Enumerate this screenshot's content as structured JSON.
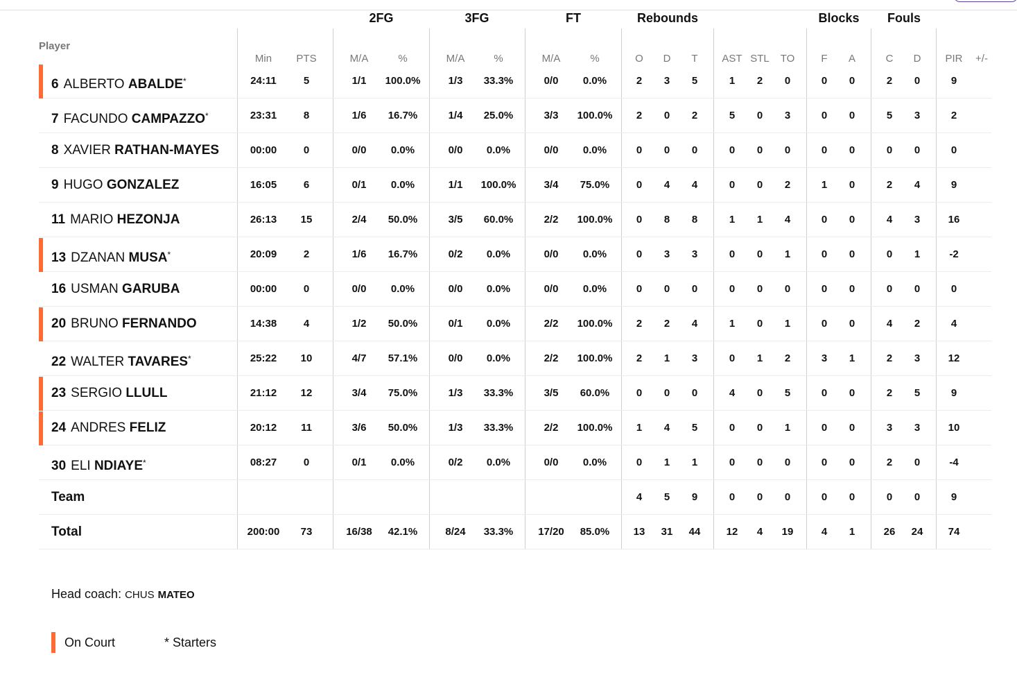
{
  "colors": {
    "on_court": "#ff6b35",
    "rule": "#cfcfcf"
  },
  "groups": [
    "2FG",
    "3FG",
    "FT",
    "Rebounds",
    "Blocks",
    "Fouls"
  ],
  "player_header": "Player",
  "columns": [
    "Min",
    "PTS",
    "M/A",
    "%",
    "M/A",
    "%",
    "M/A",
    "%",
    "O",
    "D",
    "T",
    "AST",
    "STL",
    "TO",
    "F",
    "A",
    "C",
    "D",
    "PIR",
    "+/-"
  ],
  "rows": [
    {
      "num": "6",
      "first": "ALBERTO",
      "last": "ABALDE",
      "star": "*",
      "oncourt": true,
      "stats": [
        "24:11",
        "5",
        "1/1",
        "100.0%",
        "1/3",
        "33.3%",
        "0/0",
        "0.0%",
        "2",
        "3",
        "5",
        "1",
        "2",
        "0",
        "0",
        "0",
        "2",
        "0",
        "9",
        ""
      ]
    },
    {
      "num": "7",
      "first": "FACUNDO",
      "last": "CAMPAZZO",
      "star": "*",
      "oncourt": false,
      "stats": [
        "23:31",
        "8",
        "1/6",
        "16.7%",
        "1/4",
        "25.0%",
        "3/3",
        "100.0%",
        "2",
        "0",
        "2",
        "5",
        "0",
        "3",
        "0",
        "0",
        "5",
        "3",
        "2",
        ""
      ]
    },
    {
      "num": "8",
      "first": "XAVIER",
      "last": "RATHAN-MAYES",
      "star": "",
      "oncourt": false,
      "stats": [
        "00:00",
        "0",
        "0/0",
        "0.0%",
        "0/0",
        "0.0%",
        "0/0",
        "0.0%",
        "0",
        "0",
        "0",
        "0",
        "0",
        "0",
        "0",
        "0",
        "0",
        "0",
        "0",
        ""
      ]
    },
    {
      "num": "9",
      "first": "HUGO",
      "last": "GONZALEZ",
      "star": "",
      "oncourt": false,
      "stats": [
        "16:05",
        "6",
        "0/1",
        "0.0%",
        "1/1",
        "100.0%",
        "3/4",
        "75.0%",
        "0",
        "4",
        "4",
        "0",
        "0",
        "2",
        "1",
        "0",
        "2",
        "4",
        "9",
        ""
      ]
    },
    {
      "num": "11",
      "first": "MARIO",
      "last": "HEZONJA",
      "star": "",
      "oncourt": false,
      "stats": [
        "26:13",
        "15",
        "2/4",
        "50.0%",
        "3/5",
        "60.0%",
        "2/2",
        "100.0%",
        "0",
        "8",
        "8",
        "1",
        "1",
        "4",
        "0",
        "0",
        "4",
        "3",
        "16",
        ""
      ]
    },
    {
      "num": "13",
      "first": "DZANAN",
      "last": "MUSA",
      "star": "*",
      "oncourt": true,
      "stats": [
        "20:09",
        "2",
        "1/6",
        "16.7%",
        "0/2",
        "0.0%",
        "0/0",
        "0.0%",
        "0",
        "3",
        "3",
        "0",
        "0",
        "1",
        "0",
        "0",
        "0",
        "1",
        "-2",
        ""
      ]
    },
    {
      "num": "16",
      "first": "USMAN",
      "last": "GARUBA",
      "star": "",
      "oncourt": false,
      "stats": [
        "00:00",
        "0",
        "0/0",
        "0.0%",
        "0/0",
        "0.0%",
        "0/0",
        "0.0%",
        "0",
        "0",
        "0",
        "0",
        "0",
        "0",
        "0",
        "0",
        "0",
        "0",
        "0",
        ""
      ]
    },
    {
      "num": "20",
      "first": "BRUNO",
      "last": "FERNANDO",
      "star": "",
      "oncourt": true,
      "stats": [
        "14:38",
        "4",
        "1/2",
        "50.0%",
        "0/1",
        "0.0%",
        "2/2",
        "100.0%",
        "2",
        "2",
        "4",
        "1",
        "0",
        "1",
        "0",
        "0",
        "4",
        "2",
        "4",
        ""
      ]
    },
    {
      "num": "22",
      "first": "WALTER",
      "last": "TAVARES",
      "star": "*",
      "oncourt": false,
      "stats": [
        "25:22",
        "10",
        "4/7",
        "57.1%",
        "0/0",
        "0.0%",
        "2/2",
        "100.0%",
        "2",
        "1",
        "3",
        "0",
        "1",
        "2",
        "3",
        "1",
        "2",
        "3",
        "12",
        ""
      ]
    },
    {
      "num": "23",
      "first": "SERGIO",
      "last": "LLULL",
      "star": "",
      "oncourt": true,
      "stats": [
        "21:12",
        "12",
        "3/4",
        "75.0%",
        "1/3",
        "33.3%",
        "3/5",
        "60.0%",
        "0",
        "0",
        "0",
        "4",
        "0",
        "5",
        "0",
        "0",
        "2",
        "5",
        "9",
        ""
      ]
    },
    {
      "num": "24",
      "first": "ANDRES",
      "last": "FELIZ",
      "star": "",
      "oncourt": true,
      "stats": [
        "20:12",
        "11",
        "3/6",
        "50.0%",
        "1/3",
        "33.3%",
        "2/2",
        "100.0%",
        "1",
        "4",
        "5",
        "0",
        "0",
        "1",
        "0",
        "0",
        "3",
        "3",
        "10",
        ""
      ]
    },
    {
      "num": "30",
      "first": "ELI",
      "last": "NDIAYE",
      "star": "*",
      "oncourt": false,
      "stats": [
        "08:27",
        "0",
        "0/1",
        "0.0%",
        "0/2",
        "0.0%",
        "0/0",
        "0.0%",
        "0",
        "1",
        "1",
        "0",
        "0",
        "0",
        "0",
        "0",
        "2",
        "0",
        "-4",
        ""
      ]
    }
  ],
  "team_row": {
    "label": "Team",
    "stats": [
      "",
      "",
      "",
      "",
      "",
      "",
      "",
      "",
      "4",
      "5",
      "9",
      "0",
      "0",
      "0",
      "0",
      "0",
      "0",
      "0",
      "9",
      ""
    ]
  },
  "total_row": {
    "label": "Total",
    "stats": [
      "200:00",
      "73",
      "16/38",
      "42.1%",
      "8/24",
      "33.3%",
      "17/20",
      "85.0%",
      "13",
      "31",
      "44",
      "12",
      "4",
      "19",
      "4",
      "1",
      "26",
      "24",
      "74",
      ""
    ]
  },
  "coach": {
    "prefix": "Head coach:",
    "first": "CHUS",
    "last": "MATEO"
  },
  "legend": {
    "on_court": "On Court",
    "starters": "* Starters"
  }
}
